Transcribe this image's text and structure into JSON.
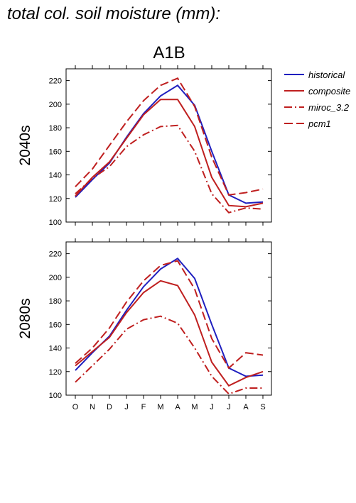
{
  "page_title": "total col. soil moisture (mm):",
  "scenario": "A1B",
  "colors": {
    "historical": "#1f1fbf",
    "models": "#bf1f1f",
    "axes": "#000000"
  },
  "chart_data": [
    {
      "type": "line",
      "panel_label": "2040s",
      "categories": [
        "O",
        "N",
        "D",
        "J",
        "F",
        "M",
        "A",
        "M",
        "J",
        "J",
        "A",
        "S"
      ],
      "ylim": [
        100,
        230
      ],
      "yticks": [
        100,
        120,
        140,
        160,
        180,
        200,
        220
      ],
      "grid": false,
      "legend": "right",
      "series": [
        {
          "name": "historical",
          "style": "solid",
          "color": "#1f1fbf",
          "values": [
            121,
            136,
            150,
            172,
            192,
            207,
            216,
            199,
            160,
            123,
            116,
            117
          ]
        },
        {
          "name": "composite",
          "style": "solid",
          "color": "#bf1f1f",
          "values": [
            122,
            138,
            151,
            171,
            191,
            204,
            204,
            181,
            138,
            114,
            113,
            116
          ]
        },
        {
          "name": "miroc_3.2",
          "style": "dashdot",
          "color": "#bf1f1f",
          "values": [
            124,
            137,
            147,
            164,
            174,
            181,
            182,
            160,
            124,
            108,
            112,
            111
          ]
        },
        {
          "name": "pcm1",
          "style": "dashed",
          "color": "#bf1f1f",
          "values": [
            130,
            145,
            165,
            185,
            203,
            216,
            222,
            198,
            155,
            123,
            125,
            128
          ]
        }
      ]
    },
    {
      "type": "line",
      "panel_label": "2080s",
      "categories": [
        "O",
        "N",
        "D",
        "J",
        "F",
        "M",
        "A",
        "M",
        "J",
        "J",
        "A",
        "S"
      ],
      "ylim": [
        100,
        230
      ],
      "yticks": [
        100,
        120,
        140,
        160,
        180,
        200,
        220
      ],
      "grid": false,
      "series": [
        {
          "name": "historical",
          "style": "solid",
          "color": "#1f1fbf",
          "values": [
            121,
            136,
            150,
            172,
            192,
            207,
            216,
            199,
            160,
            123,
            116,
            117
          ]
        },
        {
          "name": "composite",
          "style": "solid",
          "color": "#bf1f1f",
          "values": [
            125,
            137,
            149,
            170,
            187,
            197,
            193,
            168,
            128,
            108,
            115,
            120
          ]
        },
        {
          "name": "miroc_3.2",
          "style": "dashdot",
          "color": "#bf1f1f",
          "values": [
            111,
            125,
            139,
            156,
            164,
            167,
            161,
            140,
            116,
            101,
            106,
            106
          ]
        },
        {
          "name": "pcm1",
          "style": "dashed",
          "color": "#bf1f1f",
          "values": [
            127,
            140,
            157,
            179,
            197,
            210,
            214,
            190,
            148,
            123,
            136,
            134
          ]
        }
      ]
    }
  ]
}
